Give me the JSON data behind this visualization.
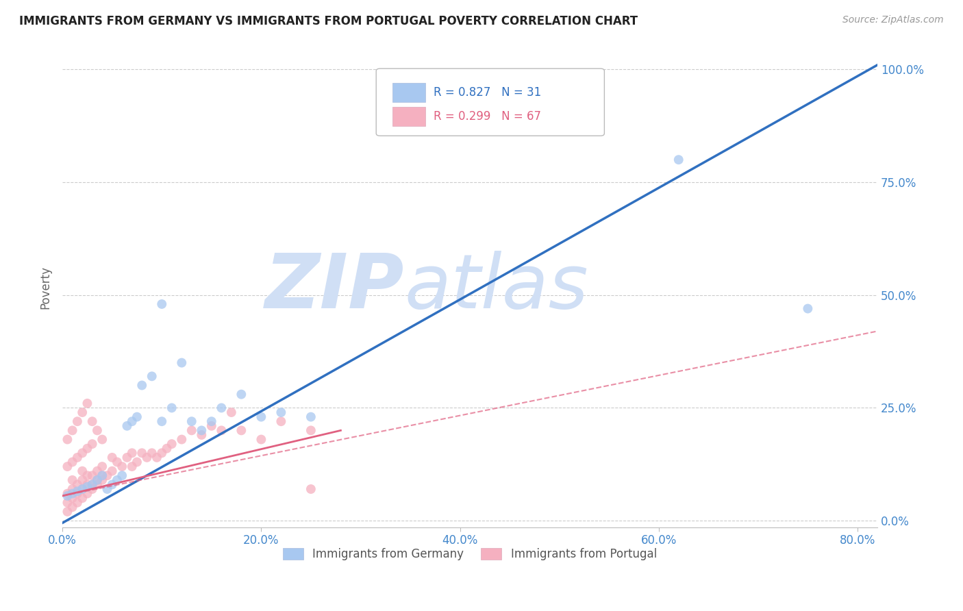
{
  "title": "IMMIGRANTS FROM GERMANY VS IMMIGRANTS FROM PORTUGAL POVERTY CORRELATION CHART",
  "source": "Source: ZipAtlas.com",
  "xlim": [
    0.0,
    0.82
  ],
  "ylim": [
    -0.015,
    1.05
  ],
  "germany_R": 0.827,
  "germany_N": 31,
  "portugal_R": 0.299,
  "portugal_N": 67,
  "germany_color": "#a8c8f0",
  "portugal_color": "#f5b0c0",
  "germany_line_color": "#3070c0",
  "portugal_line_color": "#e06080",
  "watermark_zip": "ZIP",
  "watermark_atlas": "atlas",
  "watermark_color": "#d0dff5",
  "germany_line_x0": 0.0,
  "germany_line_y0": -0.005,
  "germany_line_x1": 0.82,
  "germany_line_y1": 1.01,
  "portugal_line_solid_x0": 0.0,
  "portugal_line_solid_y0": 0.055,
  "portugal_line_solid_x1": 0.28,
  "portugal_line_solid_y1": 0.2,
  "portugal_line_dash_x0": 0.0,
  "portugal_line_dash_y0": 0.055,
  "portugal_line_dash_x1": 0.82,
  "portugal_line_dash_y1": 0.42,
  "germany_scatter_x": [
    0.005,
    0.01,
    0.015,
    0.02,
    0.025,
    0.03,
    0.035,
    0.04,
    0.045,
    0.05,
    0.055,
    0.06,
    0.065,
    0.07,
    0.075,
    0.08,
    0.09,
    0.1,
    0.11,
    0.12,
    0.13,
    0.14,
    0.15,
    0.16,
    0.18,
    0.2,
    0.22,
    0.25,
    0.1,
    0.62,
    0.75
  ],
  "germany_scatter_y": [
    0.055,
    0.06,
    0.065,
    0.07,
    0.075,
    0.08,
    0.09,
    0.1,
    0.07,
    0.08,
    0.09,
    0.1,
    0.21,
    0.22,
    0.23,
    0.3,
    0.32,
    0.22,
    0.25,
    0.35,
    0.22,
    0.2,
    0.22,
    0.25,
    0.28,
    0.23,
    0.24,
    0.23,
    0.48,
    0.8,
    0.47
  ],
  "portugal_scatter_x": [
    0.005,
    0.005,
    0.01,
    0.01,
    0.01,
    0.015,
    0.015,
    0.02,
    0.02,
    0.02,
    0.025,
    0.025,
    0.03,
    0.03,
    0.035,
    0.035,
    0.04,
    0.04,
    0.045,
    0.05,
    0.05,
    0.055,
    0.06,
    0.065,
    0.07,
    0.07,
    0.075,
    0.08,
    0.085,
    0.09,
    0.095,
    0.1,
    0.105,
    0.11,
    0.12,
    0.13,
    0.14,
    0.15,
    0.16,
    0.17,
    0.18,
    0.2,
    0.22,
    0.25,
    0.005,
    0.01,
    0.015,
    0.02,
    0.025,
    0.03,
    0.035,
    0.04,
    0.005,
    0.01,
    0.015,
    0.02,
    0.025,
    0.03,
    0.25,
    0.005,
    0.01,
    0.015,
    0.02,
    0.025,
    0.03,
    0.035,
    0.04
  ],
  "portugal_scatter_y": [
    0.04,
    0.06,
    0.05,
    0.07,
    0.09,
    0.06,
    0.08,
    0.07,
    0.09,
    0.11,
    0.08,
    0.1,
    0.08,
    0.1,
    0.09,
    0.11,
    0.1,
    0.12,
    0.1,
    0.11,
    0.14,
    0.13,
    0.12,
    0.14,
    0.12,
    0.15,
    0.13,
    0.15,
    0.14,
    0.15,
    0.14,
    0.15,
    0.16,
    0.17,
    0.18,
    0.2,
    0.19,
    0.21,
    0.2,
    0.24,
    0.2,
    0.18,
    0.22,
    0.2,
    0.02,
    0.03,
    0.04,
    0.05,
    0.06,
    0.07,
    0.08,
    0.09,
    0.12,
    0.13,
    0.14,
    0.15,
    0.16,
    0.17,
    0.07,
    0.18,
    0.2,
    0.22,
    0.24,
    0.26,
    0.22,
    0.2,
    0.18
  ]
}
